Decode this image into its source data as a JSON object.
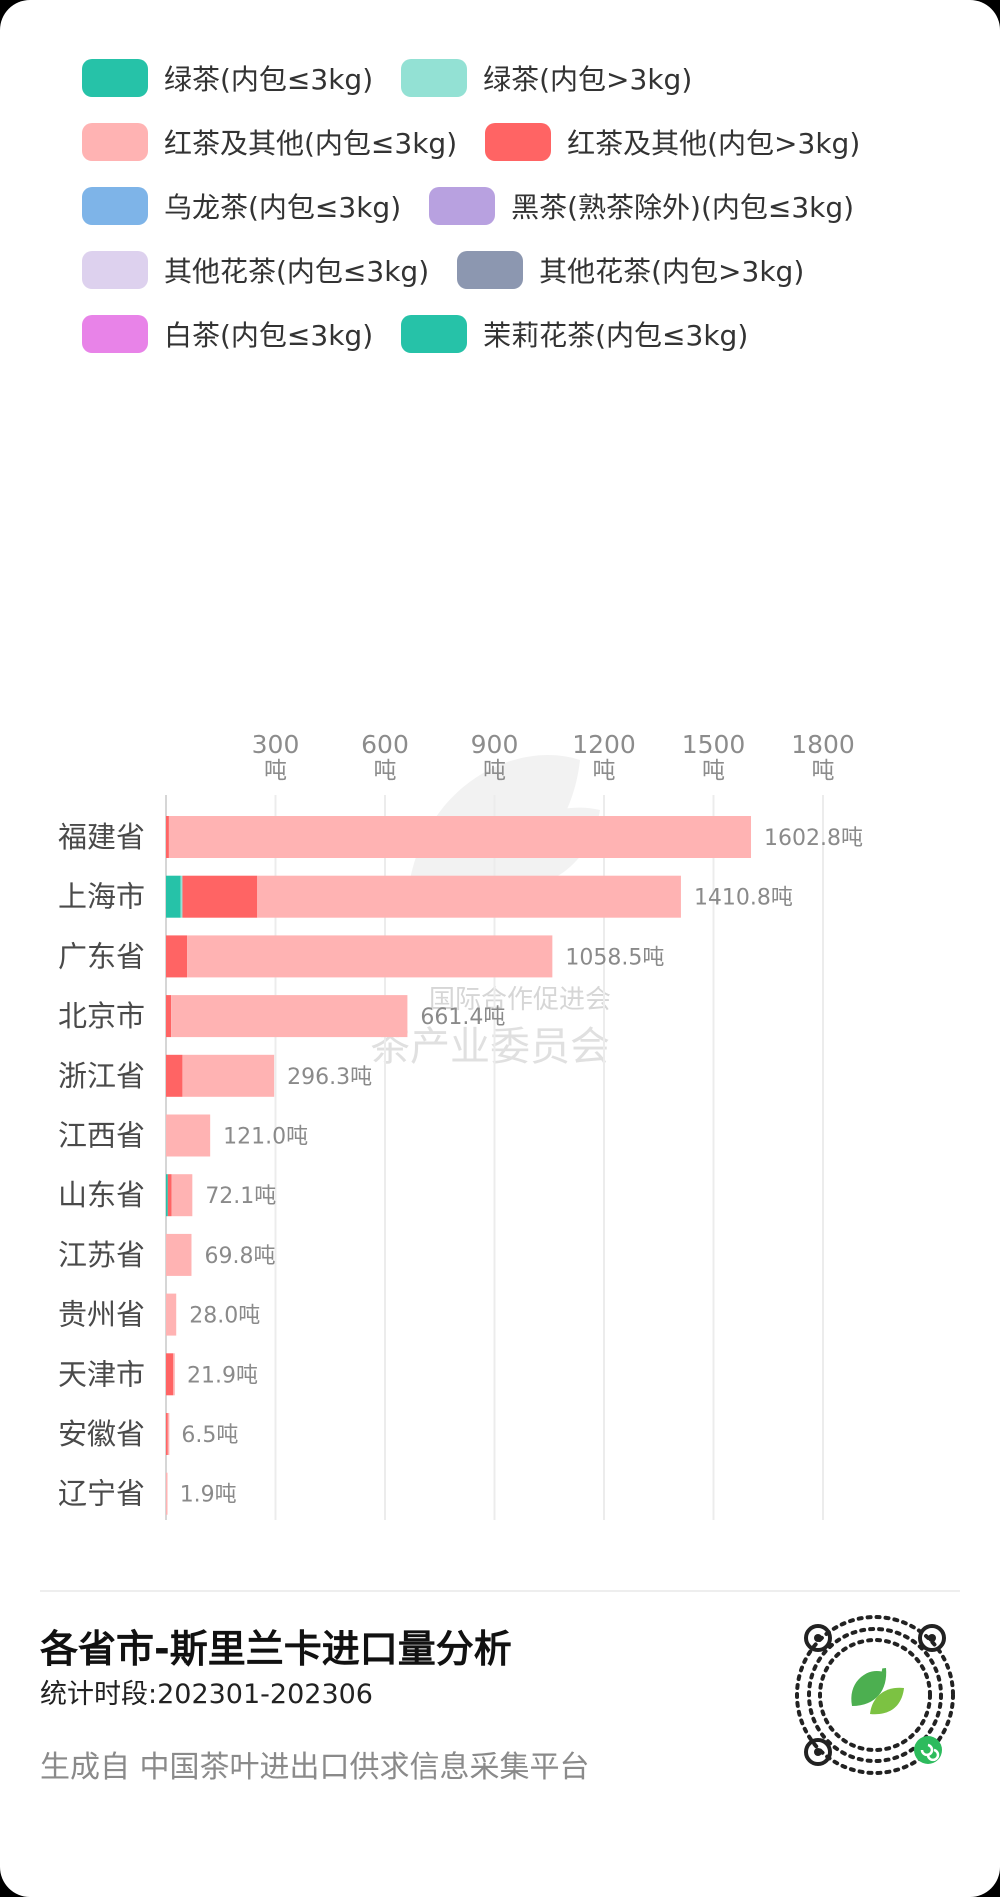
{
  "legend": [
    {
      "label": "绿茶(内包≤3kg)",
      "color": "#26c2a8"
    },
    {
      "label": "绿茶(内包>3kg)",
      "color": "#93e1d4"
    },
    {
      "label": "红茶及其他(内包≤3kg)",
      "color": "#ffb3b3"
    },
    {
      "label": "红茶及其他(内包>3kg)",
      "color": "#ff6464"
    },
    {
      "label": "乌龙茶(内包≤3kg)",
      "color": "#7eb4e8"
    },
    {
      "label": "黑茶(熟茶除外)(内包≤3kg)",
      "color": "#b8a1e0"
    },
    {
      "label": "其他花茶(内包≤3kg)",
      "color": "#ddd1ee"
    },
    {
      "label": "其他花茶(内包>3kg)",
      "color": "#8c97b0"
    },
    {
      "label": "白茶(内包≤3kg)",
      "color": "#e883e8"
    },
    {
      "label": "茉莉花茶(内包≤3kg)",
      "color": "#26c2a8"
    }
  ],
  "chart_data": {
    "type": "bar",
    "orientation": "horizontal",
    "stacked": true,
    "xlim": [
      0,
      1800
    ],
    "x_ticks": [
      300,
      600,
      900,
      1200,
      1500,
      1800
    ],
    "x_tick_unit": "吨",
    "grid": true,
    "value_suffix": "吨",
    "categories": [
      "福建省",
      "上海市",
      "广东省",
      "北京市",
      "浙江省",
      "江西省",
      "山东省",
      "江苏省",
      "贵州省",
      "天津市",
      "安徽省",
      "辽宁省"
    ],
    "totals": [
      "1602.8",
      "1410.8",
      "1058.5",
      "661.4",
      "296.3",
      "121.0",
      "72.1",
      "69.8",
      "28.0",
      "21.9",
      "6.5",
      "1.9"
    ],
    "series": [
      {
        "name": "绿茶(内包≤3kg)",
        "color": "#26c2a8",
        "values": [
          0,
          40,
          0,
          0,
          0,
          0,
          5,
          0,
          0,
          0,
          0,
          0
        ]
      },
      {
        "name": "绿茶(内包>3kg)",
        "color": "#93e1d4",
        "values": [
          0,
          5,
          0,
          0,
          0,
          0,
          0,
          0,
          0,
          0,
          0,
          0
        ]
      },
      {
        "name": "红茶及其他(内包>3kg)",
        "color": "#ff6464",
        "values": [
          8,
          205,
          58,
          14,
          45,
          0,
          10,
          0,
          0,
          20,
          5,
          0
        ]
      },
      {
        "name": "红茶及其他(内包≤3kg)",
        "color": "#ffb3b3",
        "values": [
          1594.8,
          1160.8,
          1000.5,
          647.4,
          251.3,
          121.0,
          57.1,
          69.8,
          28.0,
          1.9,
          1.5,
          1.9
        ]
      }
    ]
  },
  "watermark": {
    "line1": "国际合作促进会",
    "line2": "茶产业委员会"
  },
  "footer": {
    "title": "各省市-斯里兰卡进口量分析",
    "period": "统计时段:202301-202306",
    "source": "生成自  中国茶叶进出口供求信息采集平台"
  }
}
